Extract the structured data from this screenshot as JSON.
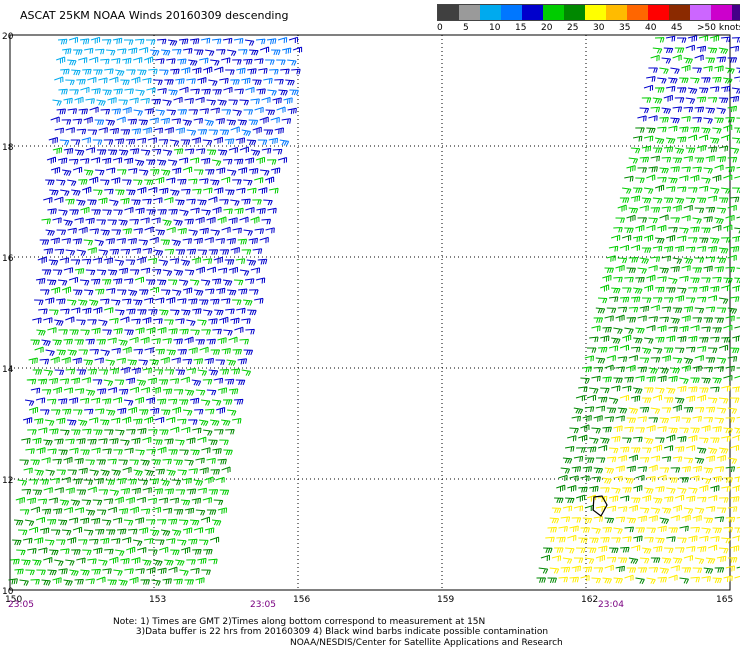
{
  "title": "ASCAT 25KM NOAA Winds 20160309 descending",
  "legend": {
    "colors": [
      "#404040",
      "#9a9a9a",
      "#00aaee",
      "#0077ff",
      "#0000cc",
      "#00cc00",
      "#008800",
      "#ffff00",
      "#ffbb00",
      "#ff6600",
      "#ff0000",
      "#8b2a00",
      "#cc66ff",
      "#cc00cc",
      "#440088"
    ],
    "labels": [
      "0",
      "5",
      "10",
      "15",
      "20",
      "25",
      "30",
      "35",
      "40",
      "45",
      ">50 knots"
    ]
  },
  "axes": {
    "lat_labels": [
      "20",
      "18",
      "16",
      "14",
      "12",
      "10"
    ],
    "lon_labels": [
      "150",
      "153",
      "156",
      "159",
      "162",
      "165"
    ]
  },
  "times": [
    "23:05",
    "23:05",
    "23:04"
  ],
  "note": "Note: 1) Times are GMT 2)Times along bottom correspond to measurement at 15N\n        3)Data buffer is 22 hrs from 20160309 4) Black wind barbs indicate possible contamination",
  "credit": "NOAA/NESDIS/Center for Satellite Applications and Research"
}
